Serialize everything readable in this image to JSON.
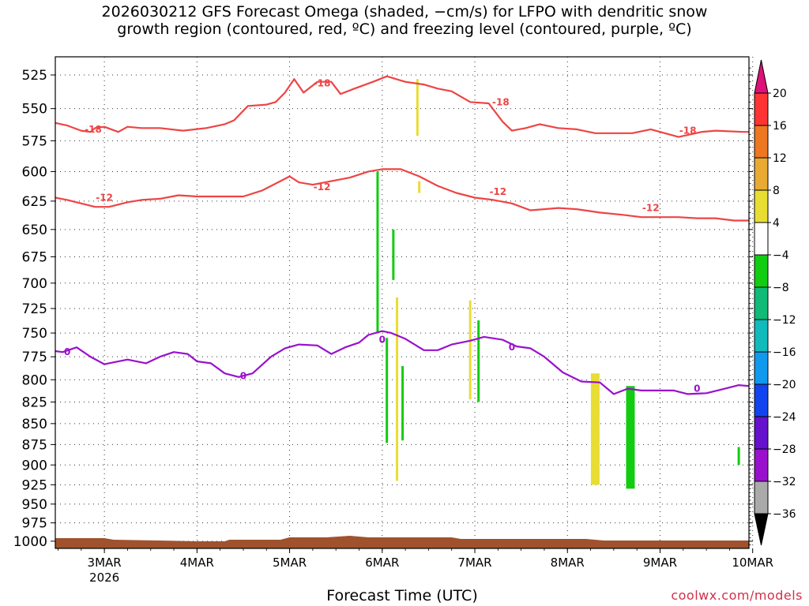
{
  "title": {
    "line1": "2026030212 GFS Forecast Omega (shaded, −cm/s) for LFPO with dendritic snow",
    "line2": "growth region (contoured, red, ºC) and freezing level (contoured, purple, ºC)"
  },
  "credit": "coolwx.com/models",
  "chart_data": {
    "type": "heatmap",
    "xlabel": "Forecast Time (UTC)",
    "x_ticks": [
      {
        "label": "3MAR",
        "sub": "2026",
        "day": 1
      },
      {
        "label": "4MAR",
        "sub": "",
        "day": 2
      },
      {
        "label": "5MAR",
        "sub": "",
        "day": 3
      },
      {
        "label": "6MAR",
        "sub": "",
        "day": 4
      },
      {
        "label": "7MAR",
        "sub": "",
        "day": 5
      },
      {
        "label": "8MAR",
        "sub": "",
        "day": 6
      },
      {
        "label": "9MAR",
        "sub": "",
        "day": 7
      },
      {
        "label": "10MAR",
        "sub": "",
        "day": 8
      }
    ],
    "x_range_days": [
      0.47,
      7.96
    ],
    "y_ticks": [
      525,
      550,
      575,
      600,
      625,
      650,
      675,
      700,
      725,
      750,
      775,
      800,
      825,
      850,
      875,
      900,
      925,
      950,
      975,
      1000
    ],
    "y_range_hpa": [
      512,
      1010
    ],
    "y_scale": "log-pressure",
    "grid": true,
    "colorbar": {
      "labels": [
        "20",
        "16",
        "12",
        "8",
        "4",
        "−4",
        "−8",
        "−12",
        "−16",
        "−20",
        "−24",
        "−28",
        "−32",
        "−36"
      ],
      "colors": [
        "#ff3333",
        "#ee7722",
        "#e8aa33",
        "#e8dd33",
        "#ffffff",
        "#11cc11",
        "#11bb77",
        "#11bbbb",
        "#1199ee",
        "#1144ee",
        "#6611cc",
        "#9911cc",
        "#aaaaaa"
      ],
      "top_arrow_color": "#dd1177",
      "bottom_arrow_color": "#000000"
    },
    "series": [
      {
        "name": "-18",
        "color": "#ee4444",
        "contour_labels": [
          {
            "day": 0.88,
            "hpa": 566,
            "text": "-18"
          },
          {
            "day": 3.35,
            "hpa": 531,
            "text": "-18"
          },
          {
            "day": 5.28,
            "hpa": 545,
            "text": "-18"
          },
          {
            "day": 7.3,
            "hpa": 567,
            "text": "-18"
          }
        ],
        "points": [
          [
            0.47,
            561
          ],
          [
            0.6,
            563
          ],
          [
            0.75,
            567
          ],
          [
            0.85,
            568
          ],
          [
            0.9,
            565
          ],
          [
            1,
            564
          ],
          [
            1.15,
            568
          ],
          [
            1.25,
            564
          ],
          [
            1.4,
            565
          ],
          [
            1.6,
            565
          ],
          [
            1.85,
            567
          ],
          [
            2.1,
            565
          ],
          [
            2.3,
            562
          ],
          [
            2.4,
            559
          ],
          [
            2.55,
            548
          ],
          [
            2.75,
            547
          ],
          [
            2.85,
            545
          ],
          [
            2.95,
            538
          ],
          [
            3.05,
            528
          ],
          [
            3.15,
            538
          ],
          [
            3.3,
            530
          ],
          [
            3.45,
            530
          ],
          [
            3.55,
            539
          ],
          [
            3.7,
            535
          ],
          [
            3.9,
            530
          ],
          [
            4.05,
            526
          ],
          [
            4.25,
            530
          ],
          [
            4.45,
            532
          ],
          [
            4.6,
            535
          ],
          [
            4.75,
            537
          ],
          [
            4.95,
            545
          ],
          [
            5.15,
            546
          ],
          [
            5.3,
            560
          ],
          [
            5.4,
            567
          ],
          [
            5.55,
            565
          ],
          [
            5.7,
            562
          ],
          [
            5.9,
            565
          ],
          [
            6.1,
            566
          ],
          [
            6.3,
            569
          ],
          [
            6.5,
            569
          ],
          [
            6.7,
            569
          ],
          [
            6.9,
            566
          ],
          [
            7.2,
            572
          ],
          [
            7.45,
            568
          ],
          [
            7.6,
            567
          ],
          [
            7.9,
            568
          ],
          [
            7.96,
            568
          ]
        ]
      },
      {
        "name": "-12",
        "color": "#ee4444",
        "contour_labels": [
          {
            "day": 1.0,
            "hpa": 622,
            "text": "-12"
          },
          {
            "day": 3.35,
            "hpa": 613,
            "text": "-12"
          },
          {
            "day": 5.25,
            "hpa": 617,
            "text": "-12"
          },
          {
            "day": 6.9,
            "hpa": 631,
            "text": "-12"
          }
        ],
        "points": [
          [
            0.47,
            622
          ],
          [
            0.6,
            624
          ],
          [
            0.75,
            627
          ],
          [
            0.9,
            630
          ],
          [
            1.05,
            630
          ],
          [
            1.25,
            626
          ],
          [
            1.4,
            624
          ],
          [
            1.6,
            623
          ],
          [
            1.8,
            620
          ],
          [
            2.0,
            621
          ],
          [
            2.2,
            621
          ],
          [
            2.5,
            621
          ],
          [
            2.7,
            616
          ],
          [
            2.85,
            610
          ],
          [
            3.0,
            604
          ],
          [
            3.1,
            609
          ],
          [
            3.25,
            611
          ],
          [
            3.45,
            608
          ],
          [
            3.65,
            605
          ],
          [
            3.85,
            600
          ],
          [
            4.0,
            598
          ],
          [
            4.2,
            598
          ],
          [
            4.4,
            604
          ],
          [
            4.6,
            612
          ],
          [
            4.8,
            618
          ],
          [
            5.0,
            622
          ],
          [
            5.2,
            624
          ],
          [
            5.4,
            627
          ],
          [
            5.6,
            633
          ],
          [
            5.75,
            632
          ],
          [
            5.9,
            631
          ],
          [
            6.1,
            632
          ],
          [
            6.35,
            635
          ],
          [
            6.6,
            637
          ],
          [
            6.8,
            639
          ],
          [
            7.0,
            639
          ],
          [
            7.2,
            639
          ],
          [
            7.4,
            640
          ],
          [
            7.6,
            640
          ],
          [
            7.8,
            642
          ],
          [
            7.96,
            642
          ]
        ]
      },
      {
        "name": "0",
        "color": "#9911cc",
        "contour_labels": [
          {
            "day": 0.6,
            "hpa": 770,
            "text": "0"
          },
          {
            "day": 2.5,
            "hpa": 796,
            "text": "0"
          },
          {
            "day": 4.0,
            "hpa": 757,
            "text": "0"
          },
          {
            "day": 5.4,
            "hpa": 765,
            "text": "0"
          },
          {
            "day": 7.4,
            "hpa": 810,
            "text": "0"
          }
        ],
        "points": [
          [
            0.47,
            769
          ],
          [
            0.55,
            770
          ],
          [
            0.7,
            765
          ],
          [
            0.85,
            775
          ],
          [
            1.0,
            783
          ],
          [
            1.1,
            781
          ],
          [
            1.25,
            778
          ],
          [
            1.45,
            782
          ],
          [
            1.6,
            775
          ],
          [
            1.75,
            770
          ],
          [
            1.9,
            772
          ],
          [
            2.0,
            780
          ],
          [
            2.15,
            782
          ],
          [
            2.3,
            793
          ],
          [
            2.45,
            797
          ],
          [
            2.6,
            793
          ],
          [
            2.8,
            775
          ],
          [
            2.95,
            766
          ],
          [
            3.1,
            762
          ],
          [
            3.3,
            763
          ],
          [
            3.45,
            772
          ],
          [
            3.6,
            765
          ],
          [
            3.75,
            760
          ],
          [
            3.85,
            752
          ],
          [
            4.0,
            748
          ],
          [
            4.1,
            750
          ],
          [
            4.25,
            756
          ],
          [
            4.45,
            768
          ],
          [
            4.6,
            768
          ],
          [
            4.75,
            762
          ],
          [
            4.95,
            758
          ],
          [
            5.1,
            754
          ],
          [
            5.3,
            757
          ],
          [
            5.45,
            764
          ],
          [
            5.6,
            766
          ],
          [
            5.75,
            775
          ],
          [
            5.95,
            792
          ],
          [
            6.15,
            802
          ],
          [
            6.35,
            803
          ],
          [
            6.5,
            816
          ],
          [
            6.65,
            810
          ],
          [
            6.8,
            812
          ],
          [
            7.0,
            812
          ],
          [
            7.15,
            812
          ],
          [
            7.3,
            816
          ],
          [
            7.5,
            815
          ],
          [
            7.7,
            810
          ],
          [
            7.85,
            806
          ],
          [
            7.96,
            807
          ]
        ]
      }
    ],
    "omega_bars": [
      {
        "day": 3.95,
        "hpa_top": 600,
        "hpa_bottom": 750,
        "color": "#11cc11"
      },
      {
        "day": 4.05,
        "hpa_top": 755,
        "hpa_bottom": 873,
        "color": "#11cc11"
      },
      {
        "day": 4.12,
        "hpa_top": 650,
        "hpa_bottom": 697,
        "color": "#11cc11"
      },
      {
        "day": 4.16,
        "hpa_top": 714,
        "hpa_bottom": 920,
        "color": "#e8dd33"
      },
      {
        "day": 4.22,
        "hpa_top": 785,
        "hpa_bottom": 870,
        "color": "#11cc11"
      },
      {
        "day": 4.38,
        "hpa_top": 528,
        "hpa_bottom": 571,
        "color": "#e8dd33"
      },
      {
        "day": 4.4,
        "hpa_top": 608,
        "hpa_bottom": 618,
        "color": "#e8dd33"
      },
      {
        "day": 4.95,
        "hpa_top": 717,
        "hpa_bottom": 822,
        "color": "#e8dd33"
      },
      {
        "day": 5.04,
        "hpa_top": 737,
        "hpa_bottom": 825,
        "color": "#11cc11"
      },
      {
        "day": 6.3,
        "hpa_top": 793,
        "hpa_bottom": 925,
        "color": "#e8dd33"
      },
      {
        "day": 6.68,
        "hpa_top": 807,
        "hpa_bottom": 930,
        "color": "#11cc11"
      },
      {
        "day": 7.85,
        "hpa_top": 878,
        "hpa_bottom": 900,
        "color": "#11cc11"
      }
    ],
    "terrain_color": "#a0522d"
  }
}
